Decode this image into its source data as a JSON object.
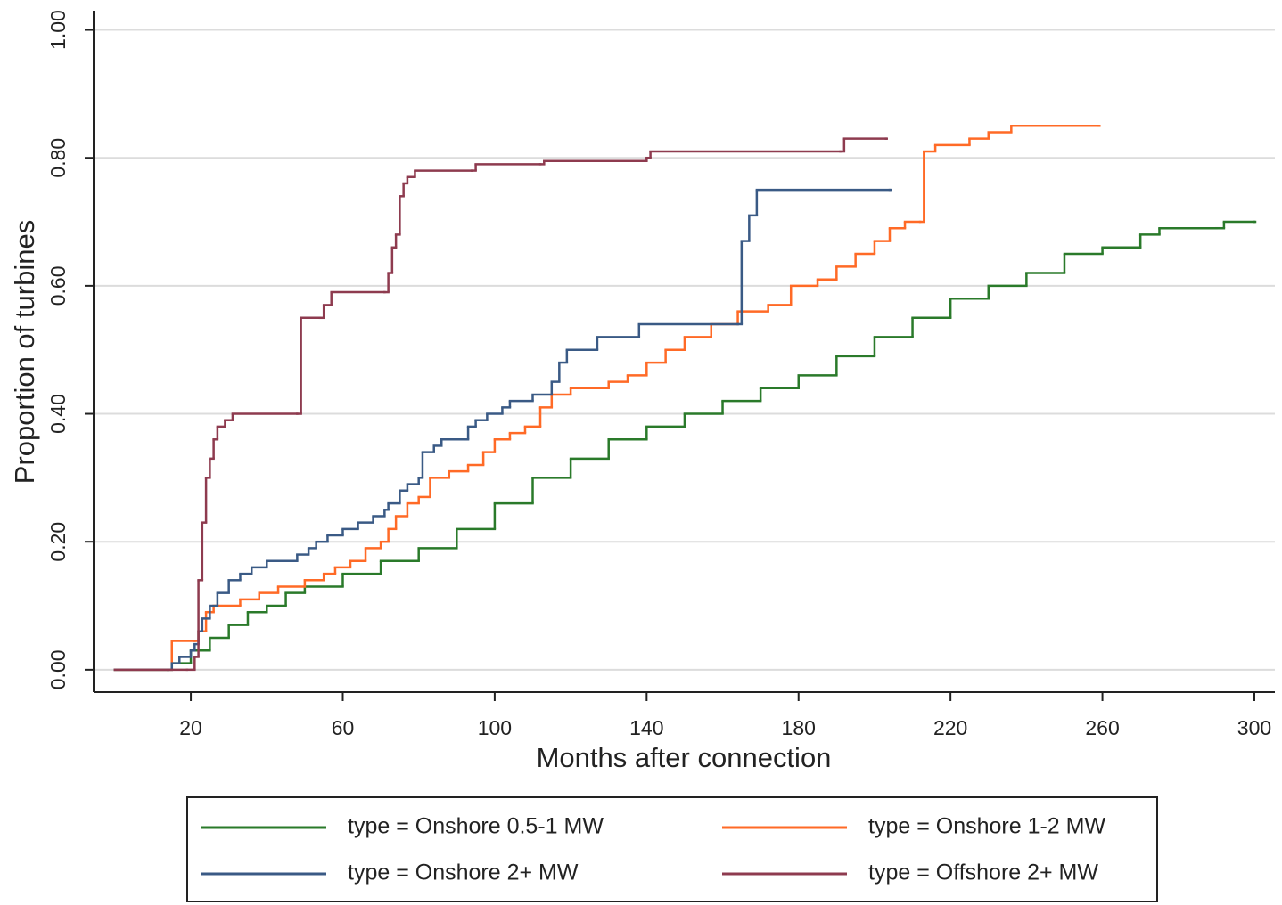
{
  "chart_data": {
    "type": "step",
    "x_label": "Months after connection",
    "y_label": "Proportion of turbines",
    "xlim": [
      -5.6,
      305.4
    ],
    "ylim": [
      -0.035,
      1.03
    ],
    "xticks": [
      20,
      60,
      100,
      140,
      180,
      220,
      260,
      300
    ],
    "yticks": [
      {
        "value": 0,
        "label": "0.00"
      },
      {
        "value": 0.2,
        "label": "0.20"
      },
      {
        "value": 0.4,
        "label": "0.40"
      },
      {
        "value": 0.6,
        "label": "0.60"
      },
      {
        "value": 0.8,
        "label": "0.80"
      },
      {
        "value": 1,
        "label": "1.00"
      }
    ],
    "grid": true,
    "legend": "bottom",
    "series": [
      {
        "name": "type = Onshore 0.5-1 MW",
        "color": "#2a7a2a",
        "x": [
          0,
          14,
          15,
          20,
          25,
          30,
          35,
          40,
          45,
          50,
          60,
          70,
          80,
          90,
          100,
          110,
          120,
          130,
          140,
          150,
          160,
          170,
          180,
          190,
          200,
          210,
          220,
          230,
          240,
          250,
          260,
          270,
          275,
          290,
          292,
          300
        ],
        "values": [
          0,
          0,
          0.01,
          0.03,
          0.05,
          0.07,
          0.09,
          0.1,
          0.12,
          0.13,
          0.15,
          0.17,
          0.19,
          0.22,
          0.26,
          0.3,
          0.33,
          0.36,
          0.38,
          0.4,
          0.42,
          0.44,
          0.46,
          0.49,
          0.52,
          0.55,
          0.58,
          0.6,
          0.62,
          0.65,
          0.66,
          0.68,
          0.69,
          0.69,
          0.7,
          0.7
        ]
      },
      {
        "name": "type = Onshore 1-2 MW",
        "color": "#ff6a26",
        "x": [
          0,
          14,
          15,
          21,
          22,
          24,
          26,
          33,
          38,
          43,
          50,
          55,
          58,
          62,
          66,
          70,
          72,
          74,
          77,
          80,
          83,
          88,
          93,
          97,
          100,
          104,
          108,
          112,
          115,
          120,
          130,
          135,
          140,
          145,
          150,
          157,
          164,
          172,
          178,
          185,
          190,
          195,
          200,
          204,
          208,
          212,
          213,
          216,
          225,
          230,
          236,
          259
        ],
        "values": [
          0,
          0,
          0.045,
          0.045,
          0.06,
          0.09,
          0.1,
          0.11,
          0.12,
          0.13,
          0.14,
          0.15,
          0.16,
          0.17,
          0.19,
          0.2,
          0.22,
          0.24,
          0.26,
          0.27,
          0.3,
          0.31,
          0.32,
          0.34,
          0.36,
          0.37,
          0.38,
          0.41,
          0.43,
          0.44,
          0.45,
          0.46,
          0.48,
          0.5,
          0.52,
          0.54,
          0.56,
          0.57,
          0.6,
          0.61,
          0.63,
          0.65,
          0.67,
          0.69,
          0.7,
          0.7,
          0.81,
          0.82,
          0.83,
          0.84,
          0.85,
          0.85
        ]
      },
      {
        "name": "type = Onshore 2+ MW",
        "color": "#3a5a85",
        "x": [
          0,
          14,
          15,
          17,
          20,
          21,
          22,
          23,
          25,
          27,
          30,
          33,
          36,
          40,
          45,
          48,
          51,
          53,
          56,
          60,
          64,
          68,
          71,
          72,
          75,
          77,
          80,
          81,
          84,
          86,
          92,
          93,
          95,
          98,
          102,
          104,
          110,
          115,
          117,
          119,
          127,
          138,
          164,
          165,
          167,
          169,
          204
        ],
        "values": [
          0,
          0,
          0.01,
          0.02,
          0.03,
          0.04,
          0.06,
          0.08,
          0.1,
          0.12,
          0.14,
          0.15,
          0.16,
          0.17,
          0.17,
          0.18,
          0.19,
          0.2,
          0.21,
          0.22,
          0.23,
          0.24,
          0.25,
          0.26,
          0.28,
          0.29,
          0.3,
          0.34,
          0.35,
          0.36,
          0.36,
          0.38,
          0.39,
          0.4,
          0.41,
          0.42,
          0.43,
          0.45,
          0.48,
          0.5,
          0.52,
          0.54,
          0.54,
          0.67,
          0.71,
          0.75,
          0.75
        ]
      },
      {
        "name": "type = Offshore 2+ MW",
        "color": "#8e3b4f",
        "x": [
          0,
          19,
          21,
          22,
          23,
          24,
          25,
          26,
          27,
          29,
          31,
          48,
          49,
          54,
          55,
          57,
          71,
          72,
          73,
          74,
          75,
          76,
          77,
          79,
          94,
          95,
          112,
          113,
          140,
          141,
          191,
          192,
          203
        ],
        "values": [
          0,
          0,
          0.02,
          0.14,
          0.23,
          0.3,
          0.33,
          0.36,
          0.38,
          0.39,
          0.4,
          0.4,
          0.55,
          0.55,
          0.57,
          0.59,
          0.59,
          0.62,
          0.66,
          0.68,
          0.74,
          0.76,
          0.77,
          0.78,
          0.78,
          0.79,
          0.79,
          0.795,
          0.8,
          0.81,
          0.81,
          0.83,
          0.83
        ]
      }
    ]
  }
}
